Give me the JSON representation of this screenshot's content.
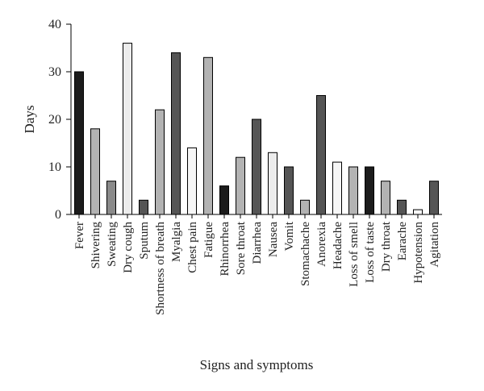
{
  "chart_data": {
    "type": "bar",
    "xlabel": "Signs and symptoms",
    "ylabel": "Days",
    "ylim": [
      0,
      40
    ],
    "yticks": [
      0,
      10,
      20,
      30,
      40
    ],
    "grid": false,
    "categories": [
      "Fever",
      "Shivering",
      "Sweating",
      "Dry cough",
      "Sputum",
      "Shortness of breath",
      "Myalgia",
      "Chest pain",
      "Fatigue",
      "Rhinorrhea",
      "Sore throat",
      "Diarrhea",
      "Nausea",
      "Vomit",
      "Stomachache",
      "Anorexia",
      "Headache",
      "Loss of smell",
      "Loss of taste",
      "Dry throat",
      "Earache",
      "Hypotension",
      "Agitation"
    ],
    "values": [
      30,
      18,
      7,
      36,
      3,
      22,
      34,
      14,
      33,
      6,
      12,
      20,
      13,
      10,
      3,
      25,
      11,
      10,
      10,
      7,
      3,
      1,
      7
    ],
    "colors": [
      "#1c1c1c",
      "#b3b3b3",
      "#8a8a8a",
      "#ececec",
      "#555555",
      "#b3b3b3",
      "#555555",
      "#f6f6f6",
      "#b3b3b3",
      "#1c1c1c",
      "#b3b3b3",
      "#555555",
      "#ececec",
      "#555555",
      "#b3b3b3",
      "#555555",
      "#f6f6f6",
      "#b3b3b3",
      "#1c1c1c",
      "#b3b3b3",
      "#555555",
      "#f6f6f6",
      "#555555"
    ]
  }
}
